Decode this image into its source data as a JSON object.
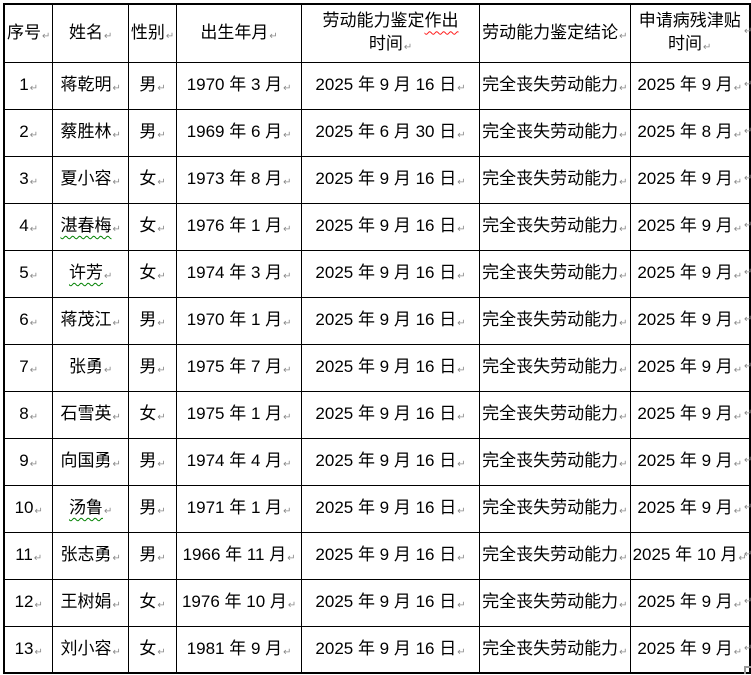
{
  "marks": {
    "cell_end": "↵",
    "row_end": "↵"
  },
  "colors": {
    "background": "#ffffff",
    "border": "#000000",
    "text": "#000000",
    "formatting_mark": "#8a8a8a",
    "spelling_underline": "#ff1a1a",
    "grammar_underline": "#008000"
  },
  "table": {
    "header": {
      "col_serial": "序号",
      "col_name": "姓名",
      "col_gender": "性别",
      "col_birth": "出生年月",
      "col_assess_line1_normal": "劳动能力鉴定",
      "col_assess_line1_flagged": "作出",
      "col_assess_line2": "时间",
      "col_conclusion": "劳动能力鉴定结论",
      "col_apply_line1": "申请病残津贴",
      "col_apply_line2": "时间"
    },
    "rows": [
      {
        "no": "1",
        "name": "蒋乾明",
        "name_grammar_flag": false,
        "gender": "男",
        "birth": "1970 年 3 月",
        "assess_date": "2025 年 9 月 16 日",
        "conclusion": "完全丧失劳动能力",
        "apply": "2025 年 9 月"
      },
      {
        "no": "2",
        "name": "蔡胜林",
        "name_grammar_flag": false,
        "gender": "男",
        "birth": "1969 年 6 月",
        "assess_date": "2025 年 6 月 30 日",
        "conclusion": "完全丧失劳动能力",
        "apply": "2025 年 8 月"
      },
      {
        "no": "3",
        "name": "夏小容",
        "name_grammar_flag": false,
        "gender": "女",
        "birth": "1973 年 8 月",
        "assess_date": "2025 年 9 月 16 日",
        "conclusion": "完全丧失劳动能力",
        "apply": "2025 年 9 月"
      },
      {
        "no": "4",
        "name": "湛春梅",
        "name_grammar_flag": true,
        "gender": "女",
        "birth": "1976 年 1 月",
        "assess_date": "2025 年 9 月 16 日",
        "conclusion": "完全丧失劳动能力",
        "apply": "2025 年 9 月"
      },
      {
        "no": "5",
        "name": "许芳",
        "name_grammar_flag": true,
        "gender": "女",
        "birth": "1974 年 3 月",
        "assess_date": "2025 年 9 月 16 日",
        "conclusion": "完全丧失劳动能力",
        "apply": "2025 年 9 月"
      },
      {
        "no": "6",
        "name": "蒋茂江",
        "name_grammar_flag": false,
        "gender": "男",
        "birth": "1970 年 1 月",
        "assess_date": "2025 年 9 月 16 日",
        "conclusion": "完全丧失劳动能力",
        "apply": "2025 年 9 月"
      },
      {
        "no": "7",
        "name": "张勇",
        "name_grammar_flag": false,
        "gender": "男",
        "birth": "1975 年 7 月",
        "assess_date": "2025 年 9 月 16 日",
        "conclusion": "完全丧失劳动能力",
        "apply": "2025 年 9 月"
      },
      {
        "no": "8",
        "name": "石雪英",
        "name_grammar_flag": false,
        "gender": "女",
        "birth": "1975 年 1 月",
        "assess_date": "2025 年 9 月 16 日",
        "conclusion": "完全丧失劳动能力",
        "apply": "2025 年 9 月"
      },
      {
        "no": "9",
        "name": "向国勇",
        "name_grammar_flag": false,
        "gender": "男",
        "birth": "1974 年 4 月",
        "assess_date": "2025 年 9 月 16 日",
        "conclusion": "完全丧失劳动能力",
        "apply": "2025 年 9 月"
      },
      {
        "no": "10",
        "name": "汤鲁",
        "name_grammar_flag": true,
        "gender": "男",
        "birth": "1971 年 1 月",
        "assess_date": "2025 年 9 月 16 日",
        "conclusion": "完全丧失劳动能力",
        "apply": "2025 年 9 月"
      },
      {
        "no": "11",
        "name": "张志勇",
        "name_grammar_flag": false,
        "gender": "男",
        "birth": "1966 年 11 月",
        "assess_date": "2025 年 9 月 16 日",
        "conclusion": "完全丧失劳动能力",
        "apply": "2025 年 10 月"
      },
      {
        "no": "12",
        "name": "王树娟",
        "name_grammar_flag": false,
        "gender": "女",
        "birth": "1976 年 10 月",
        "assess_date": "2025 年 9 月 16 日",
        "conclusion": "完全丧失劳动能力",
        "apply": "2025 年 9 月"
      },
      {
        "no": "13",
        "name": "刘小容",
        "name_grammar_flag": false,
        "gender": "女",
        "birth": "1981 年 9 月",
        "assess_date": "2025 年 9 月 16 日",
        "conclusion": "完全丧失劳动能力",
        "apply": "2025 年 9 月"
      }
    ]
  }
}
